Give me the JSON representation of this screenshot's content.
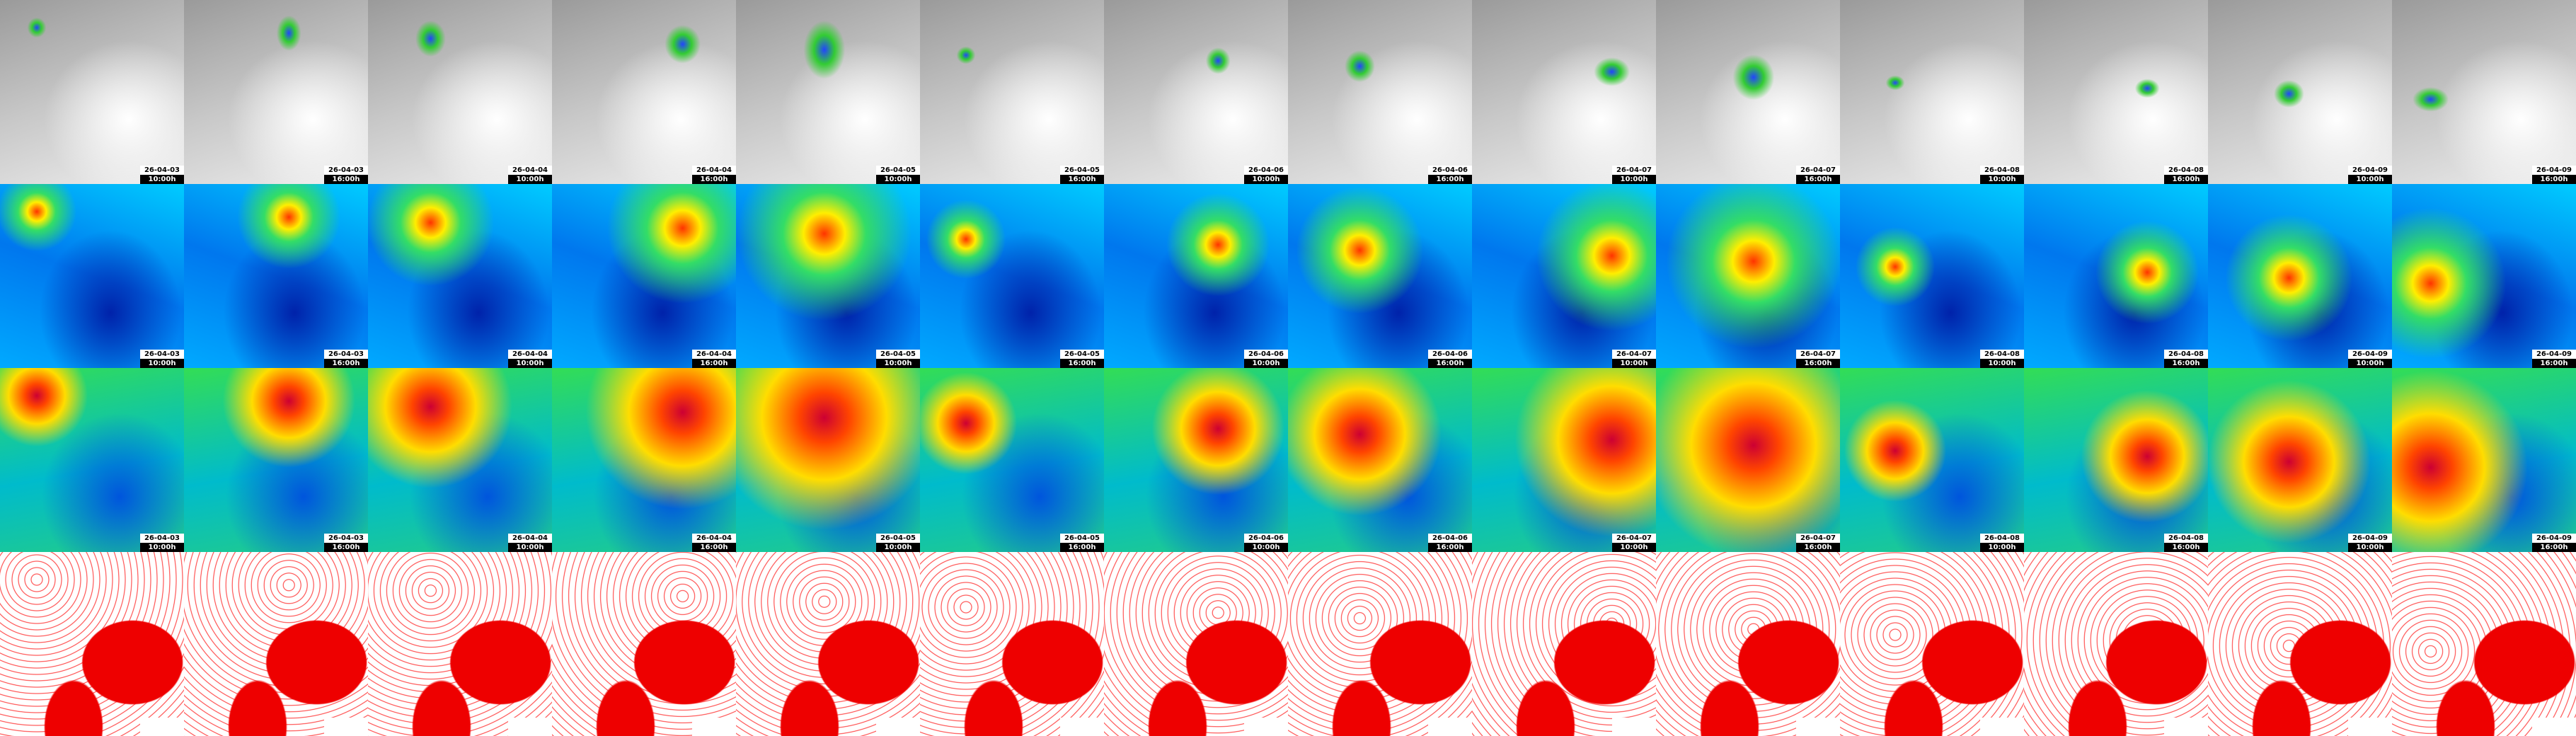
{
  "tiles": [
    {
      "date": "26-04-03",
      "time": "10:00h"
    },
    {
      "date": "26-04-03",
      "time": "16:00h"
    },
    {
      "date": "26-04-04",
      "time": "10:00h"
    },
    {
      "date": "26-04-04",
      "time": "16:00h"
    },
    {
      "date": "26-04-05",
      "time": "10:00h"
    },
    {
      "date": "26-04-05",
      "time": "16:00h"
    },
    {
      "date": "26-04-06",
      "time": "10:00h"
    },
    {
      "date": "26-04-06",
      "time": "16:00h"
    },
    {
      "date": "26-04-07",
      "time": "10:00h"
    },
    {
      "date": "26-04-07",
      "time": "16:00h"
    },
    {
      "date": "26-04-08",
      "time": "10:00h"
    },
    {
      "date": "26-04-08",
      "time": "16:00h"
    },
    {
      "date": "26-04-09",
      "time": "10:00h"
    },
    {
      "date": "26-04-09",
      "time": "16:00h"
    }
  ]
}
